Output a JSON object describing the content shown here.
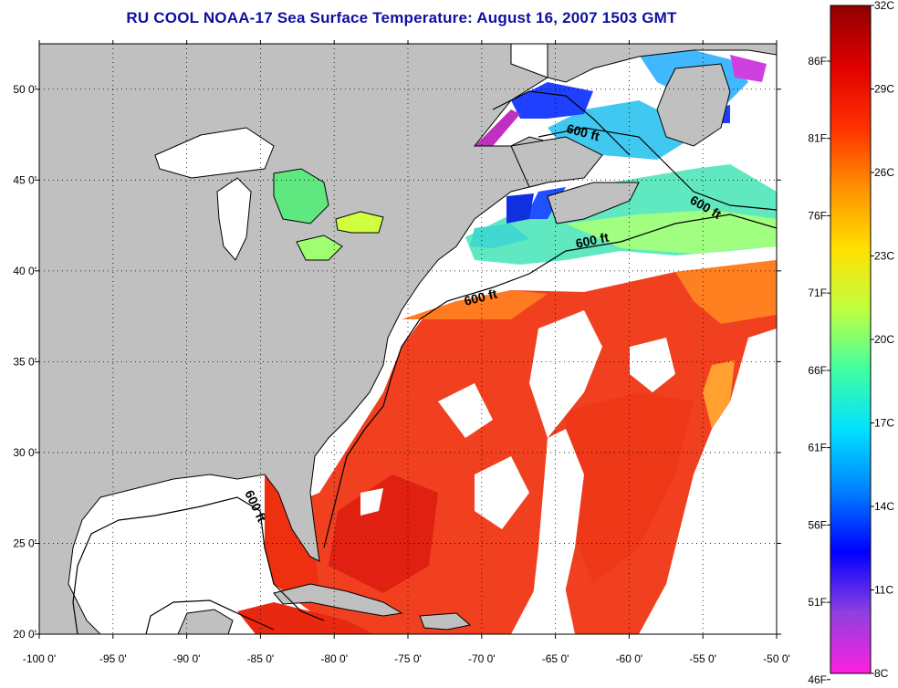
{
  "title": "RU COOL  NOAA-17  Sea Surface Temperature:  August 16, 2007 1503 GMT",
  "map": {
    "lon_range": [
      -100,
      -50
    ],
    "lat_range": [
      20,
      52.5
    ],
    "lon_ticks": [
      "-100 0'",
      "-95 0'",
      "-90 0'",
      "-85 0'",
      "-80 0'",
      "-75 0'",
      "-70 0'",
      "-65 0'",
      "-60 0'",
      "-55 0'",
      "-50 0'"
    ],
    "lat_ticks": [
      "20 0'",
      "25 0'",
      "30 0'",
      "35 0'",
      "40 0'",
      "45 0'",
      "50 0'"
    ],
    "grid": true,
    "colors": {
      "land": "#c0c0c0",
      "cloud": "#ffffff",
      "coast": "#000000"
    },
    "contour_labels": [
      "600 ft",
      "600 ft",
      "600 ft",
      "600 ft",
      "600 ft"
    ]
  },
  "colorbar": {
    "fahrenheit_labels": [
      "86F",
      "81F",
      "76F",
      "71F",
      "66F",
      "61F",
      "56F",
      "51F",
      "46F"
    ],
    "celsius_labels": [
      "32C",
      "29C",
      "26C",
      "23C",
      "20C",
      "17C",
      "14C",
      "11C",
      "8C"
    ],
    "range_c": [
      8,
      32
    ],
    "colors": [
      "#ff20e0",
      "#9040e0",
      "#0000ff",
      "#0080ff",
      "#00e0ff",
      "#40ffa0",
      "#c0ff40",
      "#ffe000",
      "#ff9000",
      "#ff3000",
      "#e00000",
      "#900000"
    ]
  }
}
